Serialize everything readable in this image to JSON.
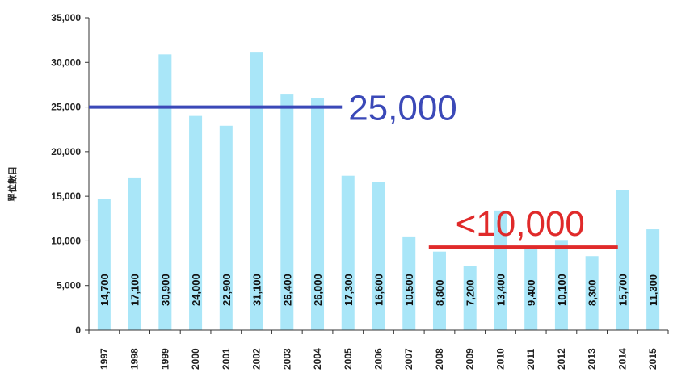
{
  "chart_data": {
    "type": "bar",
    "ylabel": "單位數目",
    "xlabel": "",
    "title": "",
    "ylim": [
      0,
      35000
    ],
    "yticks": [
      "0",
      "5,000",
      "10,000",
      "15,000",
      "20,000",
      "25,000",
      "30,000",
      "35,000"
    ],
    "categories": [
      "1997",
      "1998",
      "1999",
      "2000",
      "2001",
      "2002",
      "2003",
      "2004",
      "2005",
      "2006",
      "2007",
      "2008",
      "2009",
      "2010",
      "2011",
      "2012",
      "2013",
      "2014",
      "2015"
    ],
    "values": [
      14700,
      17100,
      30900,
      24000,
      22900,
      31100,
      26400,
      26000,
      17300,
      16600,
      10500,
      8800,
      7200,
      13400,
      9400,
      10100,
      8300,
      15700,
      11300
    ],
    "data_labels": [
      "14,700",
      "17,100",
      "30,900",
      "24,000",
      "22,900",
      "31,100",
      "26,400",
      "26,000",
      "17,300",
      "16,600",
      "10,500",
      "8,800",
      "7,200",
      "13,400",
      "9,400",
      "10,100",
      "8,300",
      "15,700",
      "11,300"
    ],
    "grid": false,
    "bar_color": "#a9e6f8",
    "annotations": [
      {
        "text": "25,000",
        "value": 25000,
        "from_category": 0,
        "to_category": 7,
        "color": "#3b49b8"
      },
      {
        "text": "<10,000",
        "value": 9300,
        "from_category": 11,
        "to_category": 17,
        "color": "#e02a2a"
      }
    ]
  }
}
